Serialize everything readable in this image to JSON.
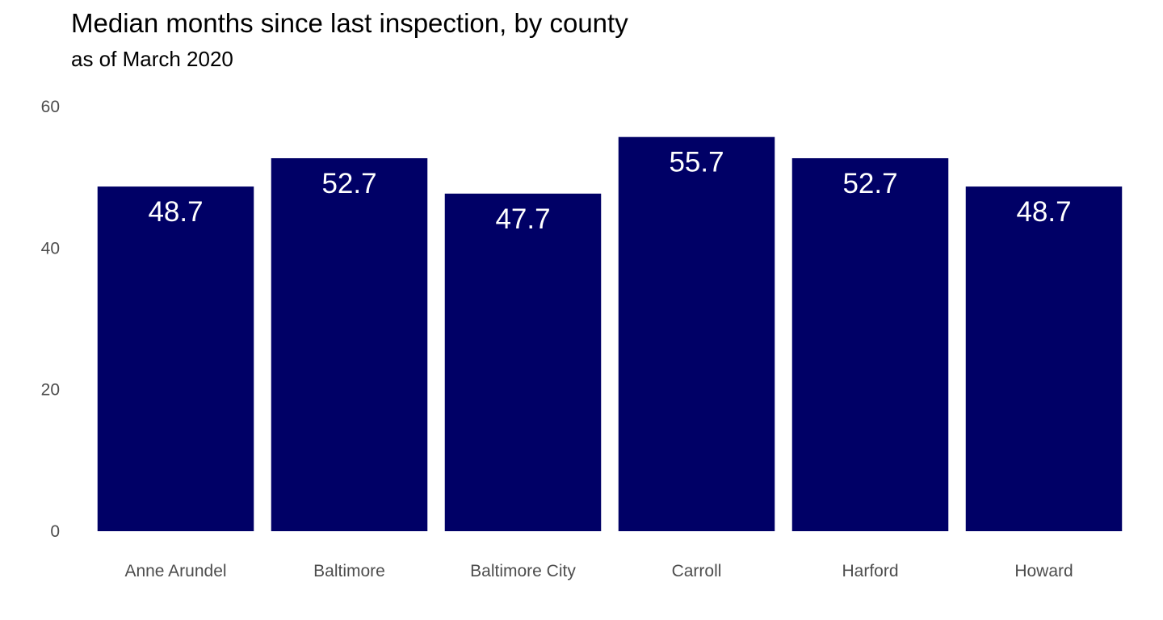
{
  "chart_data": {
    "type": "bar",
    "title": "Median months since last inspection, by county",
    "subtitle": "as of March 2020",
    "xlabel": "",
    "ylabel": "",
    "categories": [
      "Anne Arundel",
      "Baltimore",
      "Baltimore City",
      "Carroll",
      "Harford",
      "Howard"
    ],
    "values": [
      48.7,
      52.7,
      47.7,
      55.7,
      52.7,
      48.7
    ],
    "data_labels": [
      "48.7",
      "52.7",
      "47.7",
      "55.7",
      "52.7",
      "48.7"
    ],
    "ylim": [
      0,
      60
    ],
    "yticks": [
      0,
      20,
      40,
      60
    ],
    "ytick_labels": [
      "0",
      "20",
      "40",
      "60"
    ],
    "grid": false,
    "legend": "none",
    "bar_color": "#000066",
    "label_color": "#ffffff"
  }
}
